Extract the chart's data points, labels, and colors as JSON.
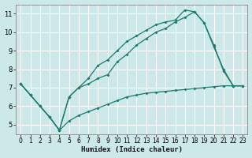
{
  "bg_color": "#cce8e8",
  "grid_color": "#ffffff",
  "line_color": "#1a7a6e",
  "xlabel": "Humidex (Indice chaleur)",
  "xlim": [
    -0.5,
    23.5
  ],
  "ylim": [
    4.5,
    11.5
  ],
  "yticks": [
    5,
    6,
    7,
    8,
    9,
    10,
    11
  ],
  "xticks": [
    0,
    1,
    2,
    3,
    4,
    5,
    6,
    7,
    8,
    9,
    10,
    11,
    12,
    13,
    14,
    15,
    16,
    17,
    18,
    19,
    20,
    21,
    22,
    23
  ],
  "line1_x": [
    0,
    1,
    2,
    3,
    4,
    5,
    6,
    7,
    8,
    9,
    10,
    11,
    12,
    13,
    14,
    15,
    16,
    17,
    18,
    19,
    20,
    21,
    22,
    23
  ],
  "line1_y": [
    7.2,
    6.6,
    6.0,
    5.4,
    4.7,
    5.2,
    5.5,
    5.7,
    5.9,
    6.1,
    6.3,
    6.5,
    6.6,
    6.7,
    6.75,
    6.8,
    6.85,
    6.9,
    6.95,
    7.0,
    7.05,
    7.1,
    7.1,
    7.1
  ],
  "line2_x": [
    0,
    1,
    2,
    3,
    4,
    5,
    6,
    7,
    8,
    9,
    10,
    11,
    12,
    13,
    14,
    15,
    16,
    17,
    18,
    19,
    20,
    21,
    22,
    23
  ],
  "line2_y": [
    7.2,
    6.6,
    6.0,
    5.4,
    4.7,
    6.5,
    7.0,
    7.5,
    8.2,
    8.5,
    9.0,
    9.5,
    9.8,
    10.1,
    10.4,
    10.55,
    10.65,
    11.2,
    11.1,
    10.5,
    9.3,
    7.9,
    7.1,
    7.1
  ],
  "line3_x": [
    0,
    1,
    2,
    3,
    4,
    5,
    6,
    7,
    8,
    9,
    10,
    11,
    12,
    13,
    14,
    15,
    16,
    17,
    18,
    19,
    20,
    21,
    22,
    23
  ],
  "line3_y": [
    7.2,
    6.6,
    6.0,
    5.4,
    4.7,
    6.5,
    7.0,
    7.2,
    7.5,
    7.7,
    8.4,
    8.8,
    9.3,
    9.65,
    10.0,
    10.2,
    10.55,
    10.8,
    11.1,
    10.5,
    9.2,
    8.0,
    7.1,
    7.1
  ]
}
